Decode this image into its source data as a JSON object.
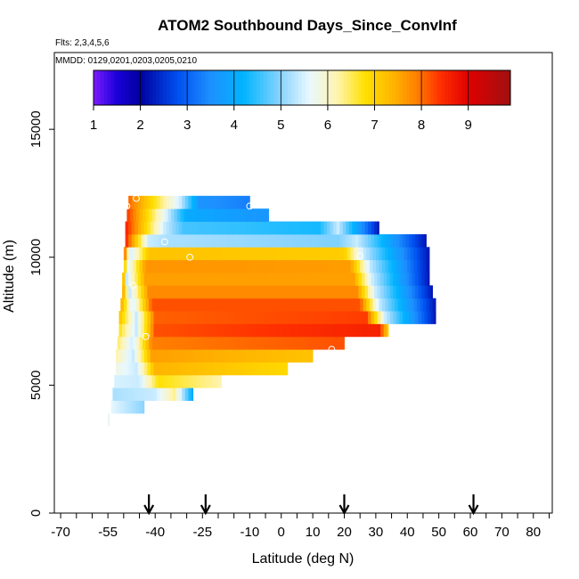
{
  "chart_data": {
    "type": "heatmap",
    "title": "ATOM2 Southbound Days_Since_ConvInf",
    "subtitle_flights": "Flts: 2,3,4,5,6",
    "subtitle_dates": "MMDD: 0129,0201,0203,0205,0210",
    "xlabel": "Latitude (deg N)",
    "ylabel": "Altitude (m)",
    "xlim": [
      -72,
      86
    ],
    "ylim": [
      0,
      18000
    ],
    "xticks": [
      -70,
      -65,
      -60,
      -55,
      -50,
      -45,
      -40,
      -35,
      -30,
      -25,
      -20,
      -15,
      -10,
      -5,
      0,
      5,
      10,
      15,
      20,
      25,
      30,
      35,
      40,
      45,
      50,
      55,
      60,
      65,
      70,
      75,
      80,
      85
    ],
    "xtick_labels": [
      "-70",
      "-55",
      "-40",
      "-25",
      "-10",
      "0",
      "10",
      "20",
      "30",
      "40",
      "50",
      "60",
      "70",
      "80"
    ],
    "xtick_label_values": [
      -70,
      -55,
      -40,
      -25,
      -10,
      0,
      10,
      20,
      30,
      40,
      50,
      60,
      70,
      80
    ],
    "yticks": [
      0,
      5000,
      10000,
      15000
    ],
    "ytick_labels": [
      "0",
      "5000",
      "10000",
      "15000"
    ],
    "colorbar": {
      "range": [
        1,
        9.9
      ],
      "ticks": [
        1,
        2,
        3,
        4,
        5,
        6,
        7,
        8,
        9
      ],
      "tick_labels": [
        "1",
        "2",
        "3",
        "4",
        "5",
        "6",
        "7",
        "8",
        "9"
      ],
      "segment_boundaries": [
        2,
        3,
        4,
        5,
        6,
        7,
        8,
        9
      ],
      "stops": [
        {
          "v": 1.0,
          "color": "#7a1cff"
        },
        {
          "v": 1.5,
          "color": "#1a00d8"
        },
        {
          "v": 2.0,
          "color": "#0000a0"
        },
        {
          "v": 2.8,
          "color": "#0050f0"
        },
        {
          "v": 3.5,
          "color": "#1e90ff"
        },
        {
          "v": 4.2,
          "color": "#00b4ff"
        },
        {
          "v": 5.0,
          "color": "#8ad4ff"
        },
        {
          "v": 5.6,
          "color": "#e8f8ff"
        },
        {
          "v": 6.2,
          "color": "#fff4b0"
        },
        {
          "v": 6.8,
          "color": "#ffe000"
        },
        {
          "v": 7.4,
          "color": "#ffb400"
        },
        {
          "v": 7.9,
          "color": "#ff8000"
        },
        {
          "v": 8.4,
          "color": "#ff3000"
        },
        {
          "v": 9.0,
          "color": "#e00000"
        },
        {
          "v": 9.9,
          "color": "#a01010"
        }
      ]
    },
    "arrow_latitudes": [
      -42,
      -24,
      20,
      61
    ],
    "rows": [
      {
        "alt": 3650,
        "lat_min": -55,
        "lat_max": -54.5,
        "left": 6,
        "front": null,
        "peak": null,
        "right_val": null,
        "fade": 0
      },
      {
        "alt": 4150,
        "lat_min": -54,
        "lat_max": -43.5,
        "left": 5.6,
        "front": null,
        "peak": null,
        "right_val": null,
        "fade": 0
      },
      {
        "alt": 4650,
        "lat_min": -53.5,
        "lat_max": -28,
        "left": 5.2,
        "front": -40,
        "peak": 6.3,
        "right_val": 4,
        "fade": 0
      },
      {
        "alt": 5150,
        "lat_min": -53,
        "lat_max": -19,
        "left": 5.5,
        "front": -45,
        "peak": 6.8,
        "right_val": 6.2,
        "fade": 0
      },
      {
        "alt": 5650,
        "lat_min": -52.5,
        "lat_max": 2,
        "left": 5.8,
        "front": -46,
        "peak": 7.4,
        "right_val": 6.9,
        "fade": 0
      },
      {
        "alt": 6150,
        "lat_min": -52.5,
        "lat_max": 10,
        "left": 6.2,
        "front": -47,
        "peak": 7.6,
        "right_val": 7.2,
        "fade": 0
      },
      {
        "alt": 6650,
        "lat_min": -52,
        "lat_max": 20,
        "left": 6.5,
        "front": -47,
        "peak": 7.9,
        "right_val": 8.2,
        "fade": 0
      },
      {
        "alt": 7150,
        "lat_min": -51.5,
        "lat_max": 34,
        "left": 6.8,
        "front": -46,
        "peak": 8.2,
        "right_val": 8.6,
        "fade": 31
      },
      {
        "alt": 7650,
        "lat_min": -51.5,
        "lat_max": 49,
        "left": 7.3,
        "front": -46,
        "peak": 8.1,
        "right_val": 8.4,
        "fade": 27
      },
      {
        "alt": 8150,
        "lat_min": -51,
        "lat_max": 49,
        "left": 7.6,
        "front": -47,
        "peak": 8.2,
        "right_val": 8.2,
        "fade": 25
      },
      {
        "alt": 8650,
        "lat_min": -50.5,
        "lat_max": 48,
        "left": 7.8,
        "front": -48,
        "peak": 7.8,
        "right_val": 7.8,
        "fade": 24
      },
      {
        "alt": 9150,
        "lat_min": -50.5,
        "lat_max": 47,
        "left": 8,
        "front": -49,
        "peak": 7.6,
        "right_val": 7.6,
        "fade": 23
      },
      {
        "alt": 9650,
        "lat_min": -50,
        "lat_max": 47,
        "left": 8.3,
        "front": -49,
        "peak": 7.7,
        "right_val": 7.6,
        "fade": 22
      },
      {
        "alt": 10150,
        "lat_min": -50,
        "lat_max": 47,
        "left": 8.5,
        "front": -48,
        "peak": 7.2,
        "right_val": 7,
        "fade": 20
      },
      {
        "alt": 10650,
        "lat_min": -49.5,
        "lat_max": 46,
        "left": 8.6,
        "front": -42,
        "peak": 5.2,
        "right_val": 4.8,
        "fade": 18
      },
      {
        "alt": 11150,
        "lat_min": -49.5,
        "lat_max": 31,
        "left": 8.6,
        "front": -37,
        "peak": 4.6,
        "right_val": 4.2,
        "fade": 12
      },
      {
        "alt": 11650,
        "lat_min": -49,
        "lat_max": -4,
        "left": 8.4,
        "front": -36,
        "peak": 4,
        "right_val": 3.6,
        "fade": 0
      },
      {
        "alt": 12150,
        "lat_min": -48.5,
        "lat_max": -10,
        "left": 8.1,
        "front": -32,
        "peak": 3.6,
        "right_val": 3.3,
        "fade": 0
      }
    ],
    "sample_points": [
      {
        "lat": -49,
        "alt": 12000
      },
      {
        "lat": -46,
        "alt": 12300
      },
      {
        "lat": -10,
        "alt": 12000
      },
      {
        "lat": -37,
        "alt": 10600
      },
      {
        "lat": -29,
        "alt": 10000
      },
      {
        "lat": 25,
        "alt": 10050
      },
      {
        "lat": -47,
        "alt": 8900
      },
      {
        "lat": -43,
        "alt": 6900
      },
      {
        "lat": 16,
        "alt": 6400
      },
      {
        "lat": 49,
        "alt": 7050
      }
    ]
  }
}
